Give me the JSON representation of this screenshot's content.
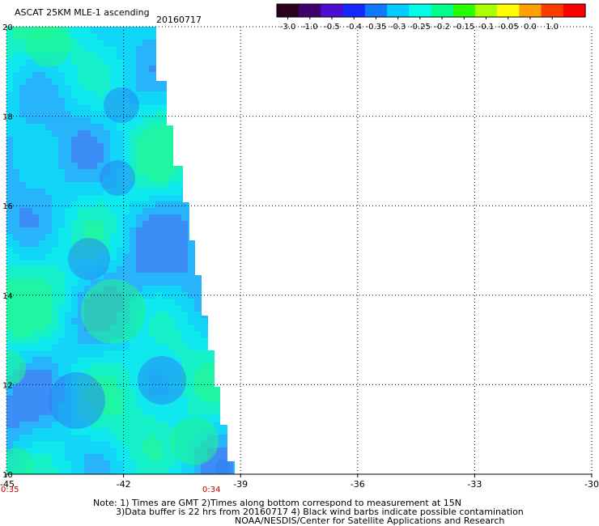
{
  "header": {
    "title": "ASCAT 25KM MLE-1 ascending",
    "date": "20160717"
  },
  "colorbar": {
    "labels": [
      "-3.0",
      "-1.0",
      "-0.5",
      "-0.4",
      "-0.35",
      "-0.3",
      "-0.25",
      "-0.2",
      "-0.15",
      "-0.1",
      "-0.05",
      "0.0",
      "1.0"
    ],
    "colors": [
      "#2a001e",
      "#40006e",
      "#4b0fd2",
      "#1428ff",
      "#0f7aff",
      "#00cdff",
      "#00ffe6",
      "#00ff8c",
      "#2aff00",
      "#aaff00",
      "#ffff00",
      "#ffa000",
      "#ff3c00",
      "#ff0000"
    ]
  },
  "map": {
    "x_ticks": [
      "-45",
      "-42",
      "-39",
      "-36",
      "-33",
      "-30"
    ],
    "y_ticks": [
      "20",
      "18",
      "16",
      "14",
      "12",
      "10"
    ],
    "times": {
      "left": "0:35",
      "right": "0:34"
    }
  },
  "notes": {
    "line1": "Note: 1) Times are GMT 2)Times along bottom correspond to measurement at 15N",
    "line2": "3)Data buffer is 22 hrs from 20160717 4) Black wind barbs indicate possible contamination",
    "line3": "NOAA/NESDIS/Center for Satellite Applications and Research"
  }
}
